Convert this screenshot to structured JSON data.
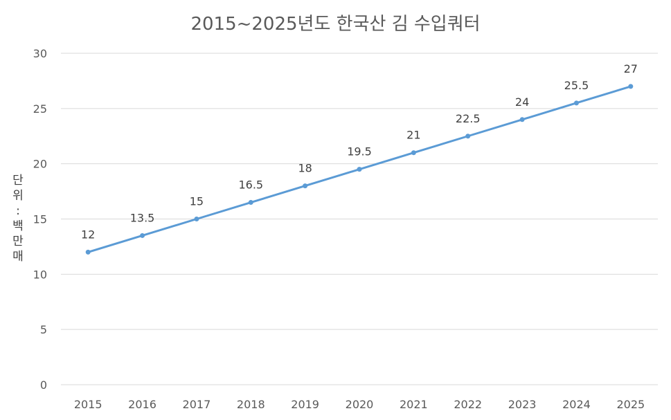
{
  "chart_data": {
    "type": "line",
    "title": "2015~2025년도 한국산 김 수입쿼터",
    "ylabel": "단위: 백만매",
    "xlabel": "",
    "categories": [
      "2015",
      "2016",
      "2017",
      "2018",
      "2019",
      "2020",
      "2021",
      "2022",
      "2023",
      "2024",
      "2025"
    ],
    "series": [
      {
        "values": [
          12,
          13.5,
          15,
          16.5,
          18,
          19.5,
          21,
          22.5,
          24,
          25.5,
          27
        ]
      }
    ],
    "data_labels": [
      "12",
      "13.5",
      "15",
      "16.5",
      "18",
      "19.5",
      "21",
      "22.5",
      "24",
      "25.5",
      "27"
    ],
    "ylim": [
      0,
      30
    ],
    "yticks": [
      "0",
      "5",
      "10",
      "15",
      "20",
      "25",
      "30"
    ],
    "grid": true,
    "legend": "none",
    "colors": {
      "line": "#5B9BD5",
      "grid": "#D9D9D9",
      "text": "#595959"
    }
  }
}
